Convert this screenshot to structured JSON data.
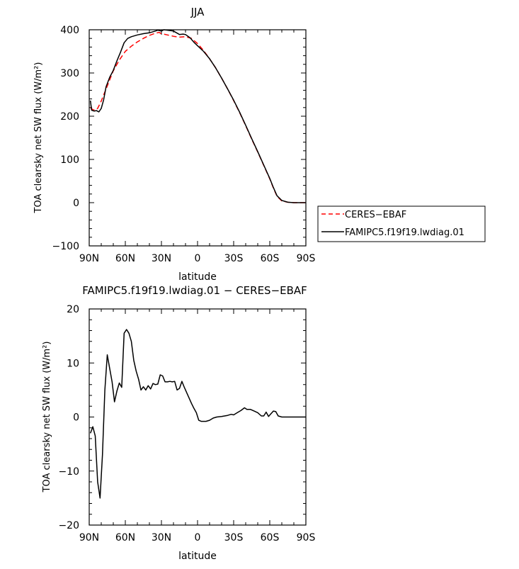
{
  "chart_data": [
    {
      "type": "line",
      "title": "JJA",
      "xlabel": "latitude",
      "ylabel": "TOA clearsky net SW flux (W/m²)",
      "xlim": [
        90,
        -90
      ],
      "ylim": [
        -100,
        400
      ],
      "x_ticks": [
        90,
        60,
        30,
        0,
        -30,
        -60,
        -90
      ],
      "x_tick_labels": [
        "90N",
        "60N",
        "30N",
        "0",
        "30S",
        "60S",
        "90S"
      ],
      "y_ticks": [
        -100,
        0,
        100,
        200,
        300,
        400
      ],
      "y_tick_labels": [
        "−100",
        "0",
        "100",
        "200",
        "300",
        "400"
      ],
      "legend_position": "outside-right",
      "series": [
        {
          "name": "CERES−EBAF",
          "color": "#ff0000",
          "dash": "dashed",
          "points": [
            [
              89,
              220
            ],
            [
              87,
              215
            ],
            [
              85,
              214
            ],
            [
              83,
              218
            ],
            [
              80,
              235
            ],
            [
              75,
              270
            ],
            [
              70,
              305
            ],
            [
              65,
              330
            ],
            [
              60,
              350
            ],
            [
              55,
              362
            ],
            [
              50,
              372
            ],
            [
              45,
              380
            ],
            [
              40,
              387
            ],
            [
              35,
              392
            ],
            [
              32,
              394
            ],
            [
              30,
              391
            ],
            [
              25,
              388
            ],
            [
              20,
              385
            ],
            [
              15,
              383
            ],
            [
              10,
              384
            ],
            [
              5,
              380
            ],
            [
              0,
              368
            ],
            [
              -5,
              352
            ],
            [
              -10,
              333
            ],
            [
              -15,
              312
            ],
            [
              -20,
              288
            ],
            [
              -25,
              263
            ],
            [
              -30,
              236
            ],
            [
              -35,
              208
            ],
            [
              -40,
              178
            ],
            [
              -45,
              147
            ],
            [
              -50,
              117
            ],
            [
              -55,
              86
            ],
            [
              -60,
              55
            ],
            [
              -63,
              34
            ],
            [
              -66,
              15
            ],
            [
              -70,
              4
            ],
            [
              -75,
              1
            ],
            [
              -80,
              0
            ],
            [
              -90,
              0
            ]
          ]
        },
        {
          "name": "FAMIPC5.f19f19.lwdiag.01",
          "color": "#000000",
          "dash": "solid",
          "points": [
            [
              89,
              236
            ],
            [
              88,
              214
            ],
            [
              86,
              212
            ],
            [
              84,
              213
            ],
            [
              82,
              210
            ],
            [
              80,
              218
            ],
            [
              78,
              238
            ],
            [
              76,
              268
            ],
            [
              73,
              290
            ],
            [
              70,
              306
            ],
            [
              67,
              328
            ],
            [
              64,
              348
            ],
            [
              61,
              370
            ],
            [
              58,
              380
            ],
            [
              55,
              384
            ],
            [
              50,
              388
            ],
            [
              45,
              391
            ],
            [
              40,
              393
            ],
            [
              35,
              397
            ],
            [
              33,
              399
            ],
            [
              30,
              397
            ],
            [
              28,
              400
            ],
            [
              25,
              399
            ],
            [
              20,
              397
            ],
            [
              15,
              389
            ],
            [
              12,
              390
            ],
            [
              10,
              389
            ],
            [
              6,
              381
            ],
            [
              3,
              371
            ],
            [
              0,
              363
            ],
            [
              -5,
              350
            ],
            [
              -10,
              333
            ],
            [
              -15,
              312
            ],
            [
              -20,
              288
            ],
            [
              -25,
              263
            ],
            [
              -30,
              237
            ],
            [
              -35,
              209
            ],
            [
              -40,
              179
            ],
            [
              -45,
              148
            ],
            [
              -50,
              118
            ],
            [
              -55,
              87
            ],
            [
              -60,
              56
            ],
            [
              -63,
              35
            ],
            [
              -66,
              16
            ],
            [
              -70,
              5
            ],
            [
              -75,
              1
            ],
            [
              -80,
              0
            ],
            [
              -90,
              0
            ]
          ]
        }
      ]
    },
    {
      "type": "line",
      "title": "FAMIPC5.f19f19.lwdiag.01 − CERES−EBAF",
      "xlabel": "latitude",
      "ylabel": "TOA clearsky net SW flux (W/m²)",
      "xlim": [
        90,
        -90
      ],
      "ylim": [
        -20,
        20
      ],
      "x_ticks": [
        90,
        60,
        30,
        0,
        -30,
        -60,
        -90
      ],
      "x_tick_labels": [
        "90N",
        "60N",
        "30N",
        "0",
        "30S",
        "60S",
        "90S"
      ],
      "y_ticks": [
        -20,
        -10,
        0,
        10,
        20
      ],
      "y_tick_labels": [
        "−20",
        "−10",
        "0",
        "10",
        "20"
      ],
      "series": [
        {
          "color": "#000000",
          "dash": "solid",
          "points": [
            [
              89,
              -3
            ],
            [
              87,
              -1.8
            ],
            [
              85,
              -3.5
            ],
            [
              83,
              -12
            ],
            [
              81,
              -15
            ],
            [
              79,
              -7
            ],
            [
              77,
              5
            ],
            [
              75,
              11.5
            ],
            [
              73,
              9
            ],
            [
              71,
              6.5
            ],
            [
              69,
              2.8
            ],
            [
              67,
              4.8
            ],
            [
              65,
              6.3
            ],
            [
              63,
              5.5
            ],
            [
              61,
              15.5
            ],
            [
              59,
              16.2
            ],
            [
              57,
              15.5
            ],
            [
              55,
              14
            ],
            [
              53,
              10.5
            ],
            [
              51,
              8.5
            ],
            [
              49,
              7
            ],
            [
              47,
              5
            ],
            [
              45,
              5.6
            ],
            [
              43,
              5
            ],
            [
              41,
              5.8
            ],
            [
              39,
              5.2
            ],
            [
              37,
              6.2
            ],
            [
              35,
              6
            ],
            [
              33,
              6.1
            ],
            [
              31,
              7.8
            ],
            [
              29,
              7.6
            ],
            [
              27,
              6.5
            ],
            [
              25,
              6.5
            ],
            [
              23,
              6.6
            ],
            [
              21,
              6.5
            ],
            [
              19,
              6.6
            ],
            [
              17,
              5
            ],
            [
              15,
              5.3
            ],
            [
              13,
              6.6
            ],
            [
              11,
              5.5
            ],
            [
              9,
              4.5
            ],
            [
              7,
              3.5
            ],
            [
              5,
              2.5
            ],
            [
              3,
              1.6
            ],
            [
              1,
              0.8
            ],
            [
              -1,
              -0.6
            ],
            [
              -3,
              -0.8
            ],
            [
              -5,
              -0.8
            ],
            [
              -7,
              -0.8
            ],
            [
              -10,
              -0.6
            ],
            [
              -13,
              -0.2
            ],
            [
              -16,
              0
            ],
            [
              -20,
              0.1
            ],
            [
              -25,
              0.3
            ],
            [
              -28,
              0.5
            ],
            [
              -30,
              0.4
            ],
            [
              -33,
              0.8
            ],
            [
              -36,
              1.2
            ],
            [
              -39,
              1.7
            ],
            [
              -41,
              1.4
            ],
            [
              -44,
              1.4
            ],
            [
              -47,
              1.1
            ],
            [
              -50,
              0.8
            ],
            [
              -53,
              0.2
            ],
            [
              -55,
              0.2
            ],
            [
              -57,
              0.9
            ],
            [
              -59,
              0.1
            ],
            [
              -61,
              0.6
            ],
            [
              -63,
              1.1
            ],
            [
              -65,
              1
            ],
            [
              -67,
              0.2
            ],
            [
              -70,
              0
            ],
            [
              -75,
              0
            ],
            [
              -80,
              0
            ],
            [
              -90,
              0
            ]
          ]
        }
      ]
    }
  ]
}
